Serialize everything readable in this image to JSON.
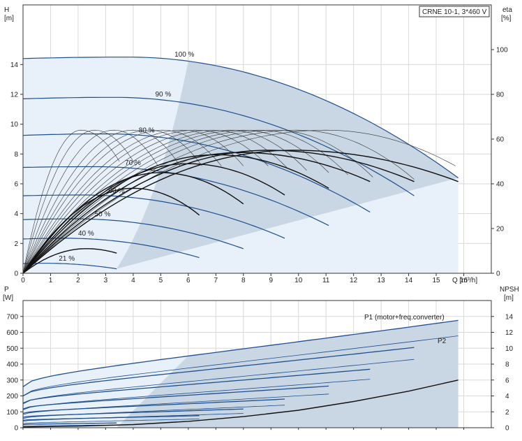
{
  "chart_data": [
    {
      "type": "line",
      "title": "CRNE 10-1, 3*460 V",
      "xlabel": "Q [m³/h]",
      "y_axis_label": {
        "name": "H",
        "unit": "[m]"
      },
      "y2_axis_label": {
        "name": "eta",
        "unit": "[%]"
      },
      "xlim": [
        0,
        17
      ],
      "ylim": [
        0,
        18
      ],
      "y2lim": [
        0,
        120
      ],
      "x_ticks": [
        0,
        1,
        2,
        3,
        4,
        5,
        6,
        7,
        8,
        9,
        10,
        11,
        12,
        13,
        14,
        15,
        16
      ],
      "y_ticks": [
        0,
        2,
        4,
        6,
        8,
        10,
        12,
        14
      ],
      "y2_ticks": [
        0,
        20,
        40,
        60,
        80,
        100
      ],
      "grid": true,
      "legend": "none",
      "colors": {
        "head": "#1f4f8e",
        "efficiency": "#111111",
        "region": "#c9d6e4",
        "region_light": "#e8f1fa"
      },
      "head_curves": [
        {
          "label": "100 %",
          "shutoff": 14.4,
          "qmax": 15.8,
          "hend": 6.4,
          "peak_q": 3.8,
          "peak_h": 14.5,
          "label_q": 5.5
        },
        {
          "label": "90 %",
          "shutoff": 11.7,
          "qmax": 14.2,
          "hend": 5.2,
          "peak_q": 3.3,
          "peak_h": 11.8,
          "label_q": 4.8
        },
        {
          "label": "80 %",
          "shutoff": 9.25,
          "qmax": 12.6,
          "hend": 4.1,
          "peak_q": 3.0,
          "peak_h": 9.35,
          "label_q": 4.2
        },
        {
          "label": "70 %",
          "shutoff": 7.1,
          "qmax": 11.1,
          "hend": 3.2,
          "peak_q": 2.6,
          "peak_h": 7.15,
          "label_q": 3.7
        },
        {
          "label": "60 %",
          "shutoff": 5.2,
          "qmax": 9.5,
          "hend": 2.35,
          "peak_q": 2.2,
          "peak_h": 5.25,
          "label_q": 3.1
        },
        {
          "label": "50 %",
          "shutoff": 3.6,
          "qmax": 8.0,
          "hend": 1.65,
          "peak_q": 1.9,
          "peak_h": 3.65,
          "label_q": 2.6
        },
        {
          "label": "40 %",
          "shutoff": 2.3,
          "qmax": 6.4,
          "hend": 1.05,
          "peak_q": 1.5,
          "peak_h": 2.35,
          "label_q": 2.0
        },
        {
          "label": "21 %",
          "shutoff": 0.65,
          "qmax": 3.4,
          "hend": 0.3,
          "peak_q": 0.8,
          "peak_h": 0.67,
          "label_q": 1.3
        }
      ],
      "efficiency_curves": [
        {
          "qmax": 15.8,
          "peak": 55,
          "qpeak": 9.8,
          "end": 41
        },
        {
          "qmax": 14.2,
          "peak": 55,
          "qpeak": 8.9,
          "end": 41
        },
        {
          "qmax": 12.6,
          "peak": 54,
          "qpeak": 7.9,
          "end": 41
        },
        {
          "qmax": 11.1,
          "peak": 53,
          "qpeak": 7.0,
          "end": 38
        },
        {
          "qmax": 9.5,
          "peak": 49,
          "qpeak": 6.0,
          "end": 35
        },
        {
          "qmax": 8.0,
          "peak": 45,
          "qpeak": 5.0,
          "end": 31
        },
        {
          "qmax": 6.4,
          "peak": 38,
          "qpeak": 4.0,
          "end": 26
        },
        {
          "qmax": 3.4,
          "peak": 11,
          "qpeak": 2.3,
          "end": 9
        }
      ],
      "thin_efficiency_curves": [
        {
          "qmax": 15.7,
          "peak": 64,
          "qpeak": 11.0,
          "end": 48
        },
        {
          "qmax": 14.2,
          "peak": 64,
          "qpeak": 10.0,
          "end": 42
        },
        {
          "qmax": 12.7,
          "peak": 64,
          "qpeak": 9.2,
          "end": 43
        },
        {
          "qmax": 11.8,
          "peak": 64,
          "qpeak": 8.6,
          "end": 44
        },
        {
          "qmax": 11.1,
          "peak": 64,
          "qpeak": 8.0,
          "end": 45
        },
        {
          "qmax": 10.3,
          "peak": 64,
          "qpeak": 7.5,
          "end": 46
        },
        {
          "qmax": 9.6,
          "peak": 64,
          "qpeak": 6.9,
          "end": 47
        },
        {
          "qmax": 8.9,
          "peak": 64,
          "qpeak": 6.3,
          "end": 48
        },
        {
          "qmax": 8.0,
          "peak": 64,
          "qpeak": 5.8,
          "end": 48
        },
        {
          "qmax": 7.2,
          "peak": 64,
          "qpeak": 5.1,
          "end": 48
        },
        {
          "qmax": 6.5,
          "peak": 64,
          "qpeak": 4.6,
          "end": 48
        },
        {
          "qmax": 5.7,
          "peak": 64,
          "qpeak": 4.0,
          "end": 48
        },
        {
          "qmax": 4.9,
          "peak": 64,
          "qpeak": 3.3,
          "end": 48
        },
        {
          "qmax": 4.1,
          "peak": 64,
          "qpeak": 2.6,
          "end": 48
        },
        {
          "qmax": 3.5,
          "peak": 64,
          "qpeak": 2.1,
          "end": 50
        }
      ]
    },
    {
      "type": "line",
      "y_axis_label": {
        "name": "P",
        "unit": "[W]"
      },
      "y2_axis_label": {
        "name": "NPSH",
        "unit": "[m]"
      },
      "xlim": [
        0,
        17
      ],
      "ylim": [
        0,
        800
      ],
      "y2lim": [
        0,
        16
      ],
      "y_ticks": [
        0,
        100,
        200,
        300,
        400,
        500,
        600,
        700
      ],
      "y2_ticks": [
        0,
        2,
        4,
        6,
        8,
        10,
        12,
        14
      ],
      "grid": true,
      "legend": "none",
      "series_labels": {
        "p1": "P1 (motor+freq.converter)",
        "p2": "P2"
      },
      "p1_curves": [
        {
          "qmax": 15.8,
          "p0": 258,
          "pend": 675
        },
        {
          "qmax": 14.2,
          "p0": 200,
          "pend": 505
        },
        {
          "qmax": 12.6,
          "p0": 155,
          "pend": 368
        },
        {
          "qmax": 11.1,
          "p0": 118,
          "pend": 262
        },
        {
          "qmax": 9.5,
          "p0": 90,
          "pend": 180
        },
        {
          "qmax": 8.0,
          "p0": 66,
          "pend": 118
        },
        {
          "qmax": 6.4,
          "p0": 46,
          "pend": 76
        },
        {
          "qmax": 3.4,
          "p0": 20,
          "pend": 30
        }
      ],
      "p2_curves": [
        {
          "qmax": 15.8,
          "p0": 200,
          "pend": 578
        },
        {
          "qmax": 14.2,
          "p0": 150,
          "pend": 430
        },
        {
          "qmax": 12.6,
          "p0": 112,
          "pend": 305
        },
        {
          "qmax": 11.1,
          "p0": 82,
          "pend": 212
        },
        {
          "qmax": 9.5,
          "p0": 58,
          "pend": 142
        },
        {
          "qmax": 8.0,
          "p0": 40,
          "pend": 90
        },
        {
          "qmax": 6.4,
          "p0": 26,
          "pend": 55
        },
        {
          "qmax": 3.4,
          "p0": 10,
          "pend": 18
        }
      ],
      "npsh": {
        "q": [
          0,
          2,
          4,
          6,
          8,
          10,
          12,
          14,
          15.8
        ],
        "values": [
          0.1,
          0.2,
          0.4,
          0.8,
          1.4,
          2.2,
          3.3,
          4.6,
          6.0
        ]
      }
    }
  ]
}
